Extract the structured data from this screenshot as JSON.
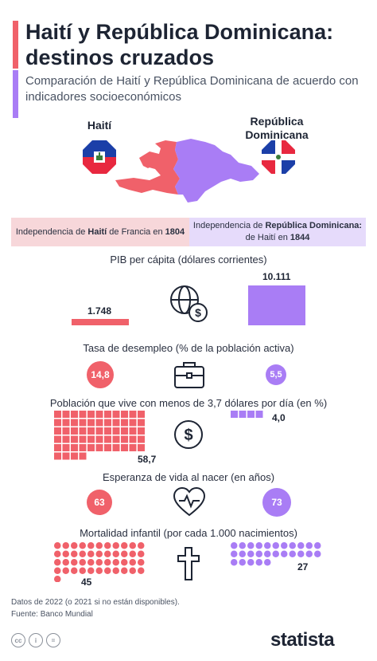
{
  "title": "Haití y República Dominicana: destinos cruzados",
  "subtitle": "Comparación de Haití y República Dominicana de acuerdo con indicadores socioeconómicos",
  "countries": {
    "haiti": "Haití",
    "dominicana": "República Dominicana"
  },
  "independence": {
    "haiti_pre": "Independencia de ",
    "haiti_name": "Haití",
    "haiti_mid": " de Francia en ",
    "haiti_year": "1804",
    "do_pre": "Independencia de ",
    "do_name": "República Dominicana:",
    "do_mid": "de Haití en ",
    "do_year": "1844"
  },
  "colors": {
    "haiti": "#f0616a",
    "dominicana": "#a97df5"
  },
  "icons": [
    "globe-dollar-icon",
    "briefcase-icon",
    "dollar-coin-icon",
    "heartbeat-icon",
    "cross-icon"
  ],
  "chart_data": [
    {
      "type": "bar",
      "title": "PIB per cápita (dólares corrientes)",
      "categories": [
        "Haití",
        "República Dominicana"
      ],
      "values": [
        1748,
        10111
      ],
      "labels": [
        "1.748",
        "10.111"
      ]
    },
    {
      "type": "bubble",
      "title": "Tasa de desempleo (% de la población activa)",
      "categories": [
        "Haití",
        "República Dominicana"
      ],
      "values": [
        14.8,
        5.5
      ],
      "labels": [
        "14,8",
        "5,5"
      ]
    },
    {
      "type": "waffle",
      "title": "Población que vive con menos de 3,7 dólares por día (en %)",
      "categories": [
        "Haití",
        "República Dominicana"
      ],
      "values": [
        58.7,
        4.0
      ],
      "labels": [
        "58,7",
        "4,0"
      ]
    },
    {
      "type": "bubble",
      "title": "Esperanza de vida al nacer (en años)",
      "categories": [
        "Haití",
        "República Dominicana"
      ],
      "values": [
        63,
        73
      ],
      "labels": [
        "63",
        "73"
      ]
    },
    {
      "type": "waffle",
      "title": "Mortalidad infantil (por cada 1.000 nacimientos)",
      "categories": [
        "Haití",
        "República Dominicana"
      ],
      "values": [
        45,
        27
      ],
      "labels": [
        "45",
        "27"
      ]
    }
  ],
  "footer": {
    "note": "Datos de 2022 (o 2021 si no están disponibles).",
    "source": "Fuente: Banco Mundial",
    "brand": "statista",
    "cc": [
      "cc",
      "i",
      "="
    ]
  }
}
